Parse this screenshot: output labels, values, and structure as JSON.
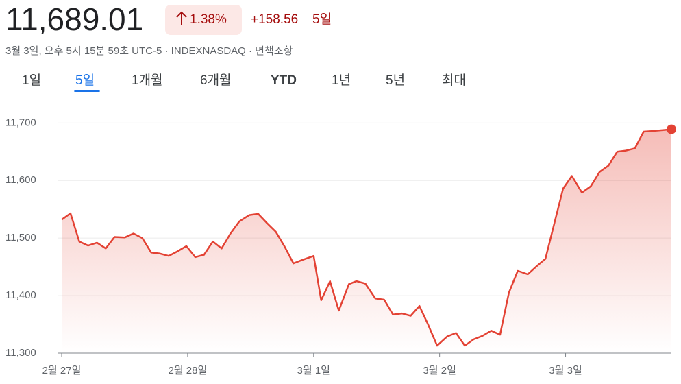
{
  "header": {
    "price": "11,689.01",
    "change_pct": "1.38%",
    "change": "+158.56",
    "period": "5일",
    "subtitle": "3월 3일, 오후 5시 15분 59초 UTC-5 · INDEXNASDAQ · 면책조항"
  },
  "tabs": [
    "1일",
    "5일",
    "1개월",
    "6개월",
    "YTD",
    "1년",
    "5년",
    "최대"
  ],
  "chart_data": {
    "type": "line",
    "color": "#e34234",
    "grid": true,
    "x": [
      0,
      0.07,
      0.14,
      0.21,
      0.28,
      0.35,
      0.42,
      0.5,
      0.57,
      0.64,
      0.71,
      0.78,
      0.85,
      0.92,
      0.99,
      1.06,
      1.13,
      1.2,
      1.27,
      1.34,
      1.41,
      1.49,
      1.56,
      1.63,
      1.7,
      1.77,
      1.84,
      1.91,
      2.0,
      2.06,
      2.13,
      2.2,
      2.28,
      2.34,
      2.41,
      2.49,
      2.56,
      2.63,
      2.7,
      2.77,
      2.84,
      2.91,
      2.98,
      3.06,
      3.13,
      3.2,
      3.27,
      3.34,
      3.41,
      3.48,
      3.55,
      3.62,
      3.7,
      3.77,
      3.84,
      3.98,
      4.05,
      4.13,
      4.2,
      4.27,
      4.34,
      4.41,
      4.48,
      4.55,
      4.62,
      4.69,
      4.84
    ],
    "values": [
      11532,
      11543,
      11494,
      11487,
      11492,
      11482,
      11502,
      11501,
      11508,
      11500,
      11475,
      11473,
      11469,
      11477,
      11486,
      11467,
      11471,
      11494,
      11482,
      11508,
      11529,
      11540,
      11542,
      11526,
      11511,
      11485,
      11456,
      11462,
      11469,
      11392,
      11425,
      11374,
      11420,
      11425,
      11421,
      11395,
      11393,
      11367,
      11369,
      11365,
      11382,
      11349,
      11313,
      11329,
      11335,
      11313,
      11324,
      11330,
      11339,
      11332,
      11405,
      11443,
      11437,
      11451,
      11464,
      11586,
      11608,
      11579,
      11590,
      11615,
      11626,
      11650,
      11652,
      11656,
      11685,
      11686,
      11689.01
    ],
    "xlim": [
      0,
      4.84
    ],
    "xticks": [
      {
        "value": 0,
        "label": "2월 27일"
      },
      {
        "value": 1,
        "label": "2월 28일"
      },
      {
        "value": 2,
        "label": "3월 1일"
      },
      {
        "value": 3,
        "label": "3월 2일"
      },
      {
        "value": 4,
        "label": "3월 3일"
      }
    ],
    "ylim": [
      11300,
      11735
    ],
    "yticks": [
      {
        "value": 11300,
        "label": "11,300"
      },
      {
        "value": 11400,
        "label": "11,400"
      },
      {
        "value": 11500,
        "label": "11,500"
      },
      {
        "value": 11600,
        "label": "11,600"
      },
      {
        "value": 11700,
        "label": "11,700"
      }
    ]
  }
}
